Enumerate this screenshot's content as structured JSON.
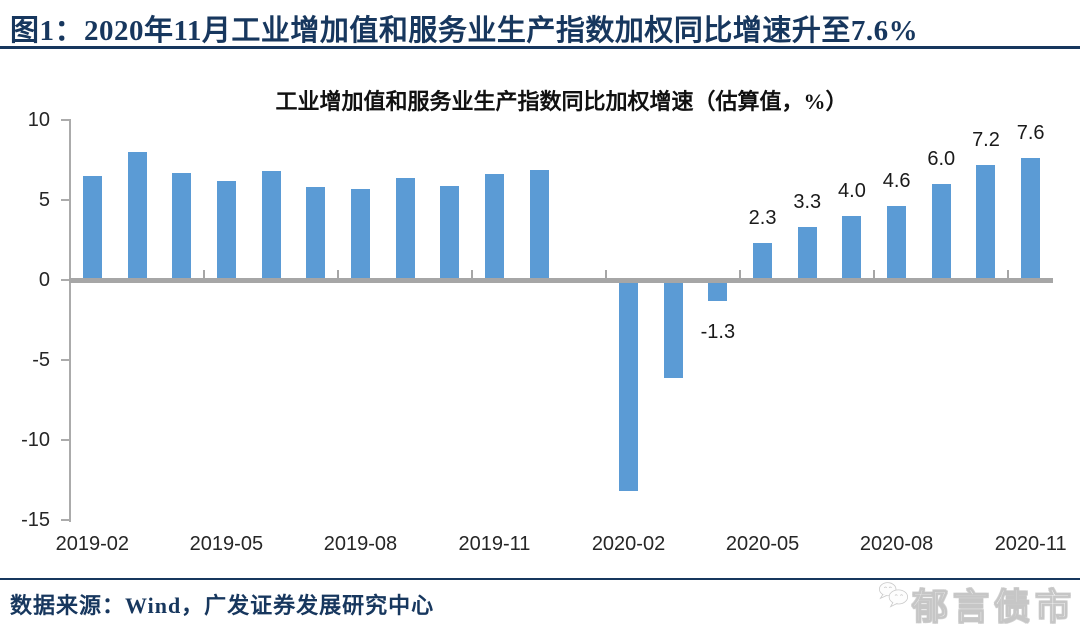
{
  "figure": {
    "title": "图1：2020年11月工业增加值和服务业生产指数加权同比增速升至7.6%",
    "accent_color": "#17375E"
  },
  "chart_data": {
    "type": "bar",
    "title": "工业增加值和服务业生产指数同比加权增速（估算值，%）",
    "categories": [
      "2019-02",
      "2019-03",
      "2019-04",
      "2019-05",
      "2019-06",
      "2019-07",
      "2019-08",
      "2019-09",
      "2019-10",
      "2019-11",
      "2019-12",
      "2020-01",
      "2020-02",
      "2020-03",
      "2020-04",
      "2020-05",
      "2020-06",
      "2020-07",
      "2020-08",
      "2020-09",
      "2020-10",
      "2020-11"
    ],
    "values": [
      6.5,
      8.0,
      6.7,
      6.2,
      6.8,
      5.8,
      5.7,
      6.4,
      5.9,
      6.6,
      6.9,
      null,
      -13.2,
      -6.1,
      -1.3,
      2.3,
      3.3,
      4.0,
      4.6,
      6.0,
      7.2,
      7.6
    ],
    "data_labels": [
      "",
      "",
      "",
      "",
      "",
      "",
      "",
      "",
      "",
      "",
      "",
      "",
      "",
      "",
      "-1.3",
      "2.3",
      "3.3",
      "4.0",
      "4.6",
      "6.0",
      "7.2",
      "7.6"
    ],
    "x_tick_labels": [
      "2019-02",
      "2019-05",
      "2019-08",
      "2019-11",
      "2020-02",
      "2020-05",
      "2020-08",
      "2020-11"
    ],
    "x_tick_slots": [
      0,
      3,
      6,
      9,
      12,
      15,
      18,
      21
    ],
    "y_ticks": [
      10,
      5,
      0,
      -5,
      -10,
      -15
    ],
    "ylim": [
      -15,
      10
    ],
    "bar_color": "#5B9BD5",
    "axis_color": "#A6A6A6",
    "grid": "off",
    "legend": "none"
  },
  "footer": {
    "source": "数据来源：Wind，广发证券发展研究中心",
    "watermark_icon": "wechat-icon",
    "watermark_text": "郁言债市"
  }
}
